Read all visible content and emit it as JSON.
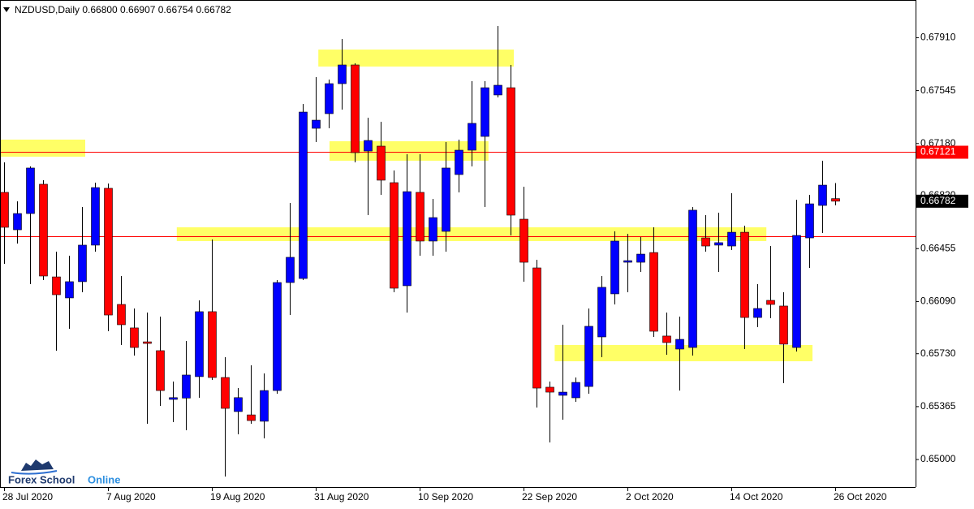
{
  "chart_data": {
    "type": "candlestick",
    "title": "NZDUSD,Daily  0.66800 0.66907 0.66754 0.66782",
    "categories": [
      "28 Jul 2020",
      null,
      null,
      null,
      null,
      null,
      null,
      null,
      "7 Aug 2020",
      null,
      null,
      null,
      null,
      null,
      null,
      null,
      "19 Aug 2020",
      null,
      null,
      null,
      null,
      null,
      null,
      null,
      "31 Aug 2020",
      null,
      null,
      null,
      null,
      null,
      null,
      null,
      "10 Sep 2020",
      null,
      null,
      null,
      null,
      null,
      null,
      null,
      "22 Sep 2020",
      null,
      null,
      null,
      null,
      null,
      null,
      null,
      "2 Oct 2020",
      null,
      null,
      null,
      null,
      null,
      null,
      null,
      "14 Oct 2020",
      null,
      null,
      null,
      null,
      null,
      null,
      null,
      "26 Oct 2020"
    ],
    "open": [
      0.66843,
      0.66585,
      0.66697,
      0.66899,
      0.6626,
      0.66115,
      0.66227,
      0.66479,
      0.66871,
      0.6607,
      0.65908,
      0.65812,
      0.65751,
      0.65415,
      0.65424,
      0.65572,
      0.6602,
      0.65566,
      0.65331,
      0.65308,
      0.65264,
      0.65476,
      0.66221,
      0.66249,
      0.67285,
      0.67386,
      0.67593,
      0.67722,
      0.67128,
      0.67162,
      0.6691,
      0.66199,
      0.66843,
      0.66507,
      0.66574,
      0.66966,
      0.67134,
      0.67229,
      0.67515,
      0.67565,
      0.66658,
      0.66322,
      0.65499,
      0.65443,
      0.65426,
      0.65504,
      0.65846,
      0.66143,
      0.66361,
      0.66361,
      0.66428,
      0.65852,
      0.65762,
      0.65773,
      0.66529,
      0.66479,
      0.66473,
      0.66568,
      0.6598,
      0.66098,
      0.66059,
      0.65773,
      0.66529,
      0.66753,
      0.668
    ],
    "high": [
      0.6705,
      0.66781,
      0.67022,
      0.66927,
      0.66434,
      0.66406,
      0.66742,
      0.6691,
      0.66904,
      0.66266,
      0.66042,
      0.66014,
      0.65986,
      0.65538,
      0.65818,
      0.66098,
      0.66518,
      0.65706,
      0.65493,
      0.6565,
      0.65594,
      0.66238,
      0.6677,
      0.67453,
      0.67638,
      0.67621,
      0.67901,
      0.67733,
      0.67358,
      0.6733,
      0.66994,
      0.67106,
      0.67106,
      0.66798,
      0.6719,
      0.67207,
      0.6761,
      0.6761,
      0.67991,
      0.67722,
      0.66882,
      0.66378,
      0.65538,
      0.6593,
      0.65566,
      0.66042,
      0.66266,
      0.66574,
      0.66557,
      0.66535,
      0.66602,
      0.66014,
      0.65986,
      0.66742,
      0.66686,
      0.66703,
      0.66837,
      0.66613,
      0.6621,
      0.66473,
      0.66154,
      0.66792,
      0.66826,
      0.67061,
      0.66907
    ],
    "low": [
      0.6635,
      0.6649,
      0.6621,
      0.66238,
      0.65751,
      0.65902,
      0.66154,
      0.66434,
      0.65885,
      0.6579,
      0.65717,
      0.65247,
      0.6537,
      0.65258,
      0.65202,
      0.65426,
      0.65549,
      0.64883,
      0.65174,
      0.65247,
      0.65146,
      0.65454,
      0.65997,
      0.66238,
      0.6719,
      0.67285,
      0.67414,
      0.6705,
      0.66686,
      0.66826,
      0.66154,
      0.66014,
      0.66406,
      0.66406,
      0.66434,
      0.66843,
      0.67022,
      0.66742,
      0.67498,
      0.66546,
      0.66227,
      0.65359,
      0.65118,
      0.65275,
      0.65398,
      0.65454,
      0.65706,
      0.6607,
      0.66154,
      0.66294,
      0.65846,
      0.65723,
      0.65476,
      0.65717,
      0.66434,
      0.66294,
      0.66445,
      0.65762,
      0.65913,
      0.65975,
      0.65527,
      0.65745,
      0.66322,
      0.66563,
      0.66754
    ],
    "close": [
      0.66602,
      0.66697,
      0.67011,
      0.66266,
      0.66137,
      0.66227,
      0.66479,
      0.66876,
      0.65997,
      0.6593,
      0.65773,
      0.65801,
      0.65476,
      0.65427,
      0.65583,
      0.6602,
      0.65566,
      0.65353,
      0.65427,
      0.65269,
      0.65476,
      0.66221,
      0.66395,
      0.67397,
      0.67341,
      0.67593,
      0.67722,
      0.67117,
      0.67201,
      0.66927,
      0.66182,
      0.66848,
      0.66507,
      0.66669,
      0.67011,
      0.67134,
      0.67319,
      0.67565,
      0.67582,
      0.66686,
      0.66361,
      0.65493,
      0.65465,
      0.65465,
      0.65532,
      0.65919,
      0.66188,
      0.66507,
      0.66372,
      0.66417,
      0.65885,
      0.65807,
      0.65829,
      0.6672,
      0.66473,
      0.66496,
      0.66568,
      0.6598,
      0.66042,
      0.6607,
      0.65796,
      0.66546,
      0.66764,
      0.66893,
      0.66782
    ],
    "up_color": "#0000ff",
    "down_color": "#ff0000",
    "ylim": [
      0.6481,
      0.6817
    ],
    "yticks": [
      {
        "value": 0.65,
        "label": "0.65000"
      },
      {
        "value": 0.65365,
        "label": "0.65365"
      },
      {
        "value": 0.6573,
        "label": "0.65730"
      },
      {
        "value": 0.6609,
        "label": "0.66090"
      },
      {
        "value": 0.66455,
        "label": "0.66455"
      },
      {
        "value": 0.6682,
        "label": "0.66820"
      },
      {
        "value": 0.6718,
        "label": "0.67180"
      },
      {
        "value": 0.67545,
        "label": "0.67545"
      },
      {
        "value": 0.6791,
        "label": "0.67910"
      }
    ],
    "hlines": [
      {
        "value": 0.67121,
        "label": "0.67121",
        "color": "#ff0000"
      },
      {
        "value": 0.66539,
        "color": "#ff0000"
      }
    ],
    "current_price": {
      "value": 0.66782,
      "label": "0.66782"
    },
    "zones": [
      {
        "x": [
          -0.31,
          6.25
        ],
        "y": [
          0.67089,
          0.67207
        ]
      },
      {
        "x": [
          24.2,
          39.25
        ],
        "y": [
          0.67711,
          0.67828
        ]
      },
      {
        "x": [
          25.06,
          37.3
        ],
        "y": [
          0.67061,
          0.67196
        ]
      },
      {
        "x": [
          13.3,
          58.7
        ],
        "y": [
          0.66507,
          0.66602
        ]
      },
      {
        "x": [
          42.4,
          62.25
        ],
        "y": [
          0.65678,
          0.6579
        ]
      }
    ],
    "zone_color": "#ffff66",
    "logo": {
      "text1": "Forex School",
      "text2": "Online"
    }
  }
}
